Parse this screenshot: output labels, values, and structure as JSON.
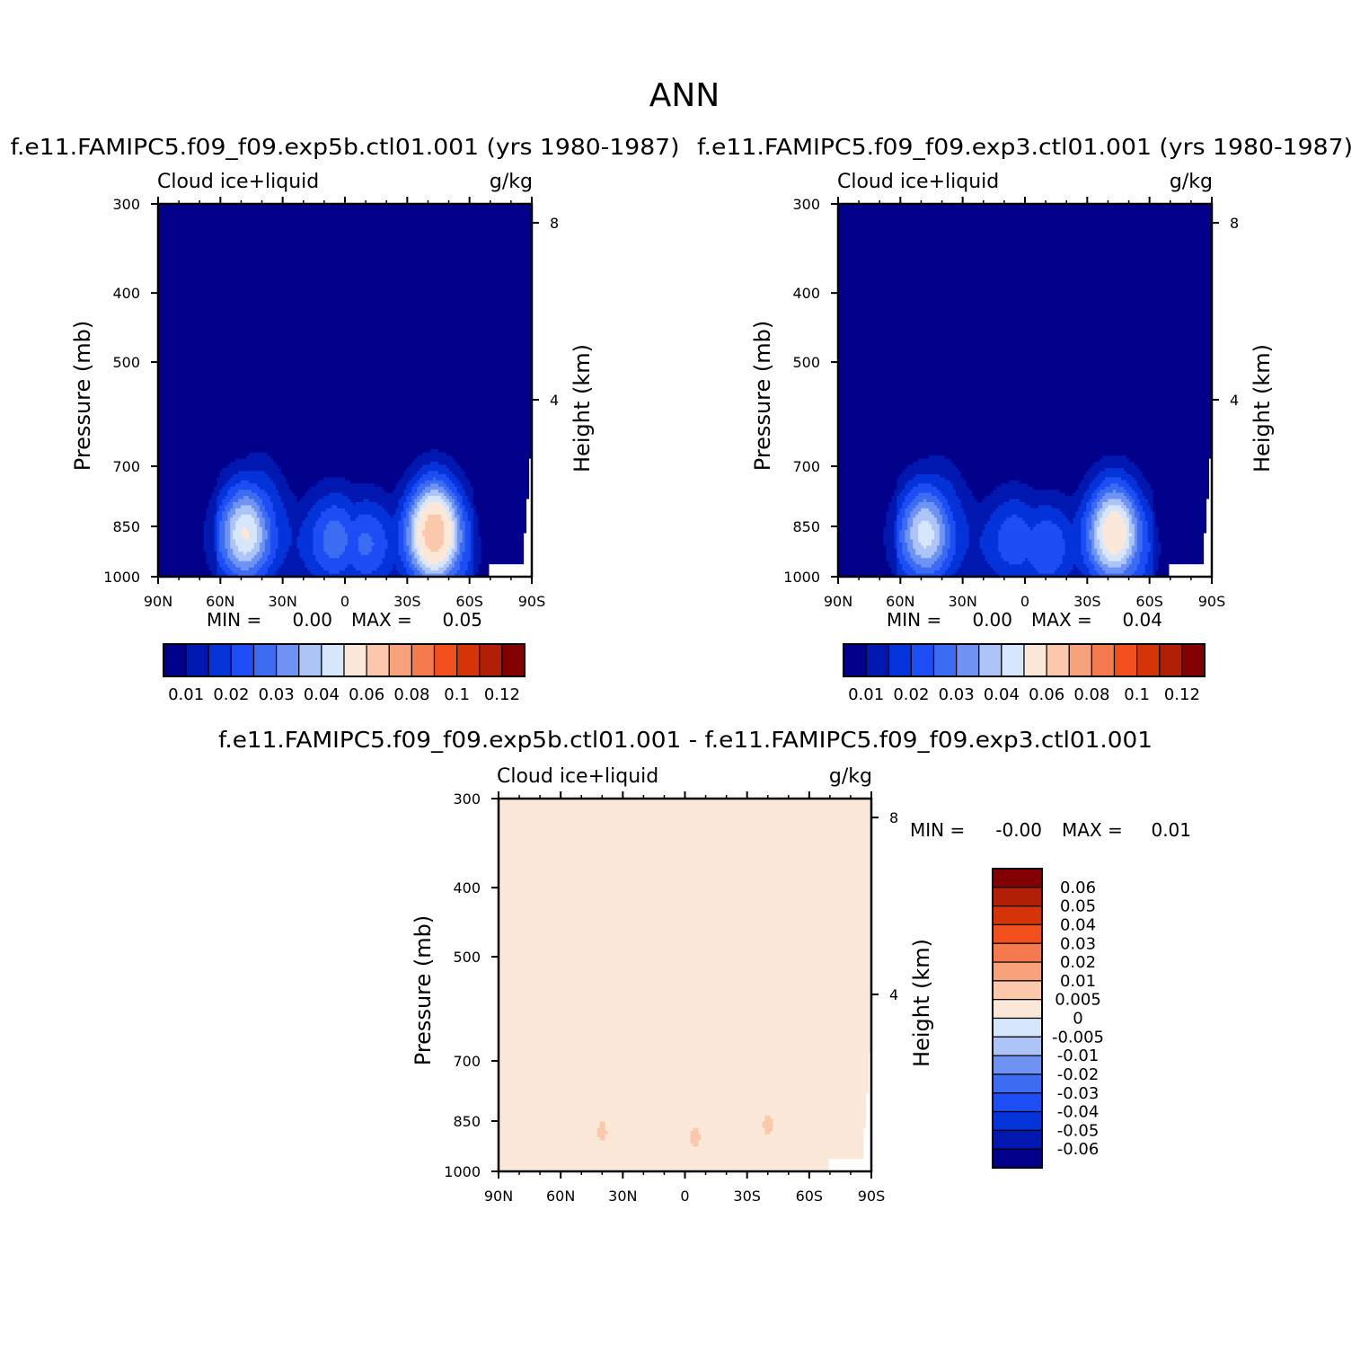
{
  "figure": {
    "title": "ANN"
  },
  "palette": {
    "seq": [
      "#00008b",
      "#0018b0",
      "#0433da",
      "#1d4df5",
      "#3c6cf2",
      "#6e93f2",
      "#adc4f7",
      "#d6e6fb",
      "#fce8d8",
      "#fbc8ac",
      "#f8a27c",
      "#f57a4d",
      "#f1501d",
      "#d53308",
      "#b01f06",
      "#820001"
    ],
    "diff": [
      "#00008b",
      "#0018b0",
      "#0433da",
      "#1d4df5",
      "#3c6cf2",
      "#6e93f2",
      "#adc4f7",
      "#d6e6fb",
      "#fce8d8",
      "#fbc8ac",
      "#f8a27c",
      "#f57a4d",
      "#f1501d",
      "#d53308",
      "#b01f06",
      "#820001"
    ],
    "missing": "#ffffff"
  },
  "panels": [
    {
      "case": "f.e11.FAMIPC5.f09_f09.exp5b.ctl01.001 (yrs 1980-1987)",
      "variable": "Cloud ice+liquid",
      "units": "g/kg",
      "min_label": "MIN =",
      "min_value": "0.00",
      "max_label": "MAX =",
      "max_value": "0.05"
    },
    {
      "case": "f.e11.FAMIPC5.f09_f09.exp3.ctl01.001 (yrs 1980-1987)",
      "variable": "Cloud ice+liquid",
      "units": "g/kg",
      "min_label": "MIN =",
      "min_value": "0.00",
      "max_label": "MAX =",
      "max_value": "0.04"
    },
    {
      "case": "f.e11.FAMIPC5.f09_f09.exp5b.ctl01.001 - f.e11.FAMIPC5.f09_f09.exp3.ctl01.001",
      "variable": "Cloud ice+liquid",
      "units": "g/kg",
      "min_label": "MIN =",
      "min_value": "-0.00",
      "max_label": "MAX =",
      "max_value": "0.01"
    }
  ],
  "axes": {
    "x_ticks": [
      "90N",
      "60N",
      "30N",
      "0",
      "30S",
      "60S",
      "90S"
    ],
    "y_label": "Pressure (mb)",
    "y_ticks": [
      "300",
      "400",
      "500",
      "700",
      "850",
      "1000"
    ],
    "y2_label": "Height (km)",
    "y2_ticks": [
      "8",
      "4"
    ]
  },
  "colorbars": {
    "seq_labels": [
      "0.01",
      "0.02",
      "0.03",
      "0.04",
      "0.06",
      "0.08",
      "0.1",
      "0.12"
    ],
    "diff_labels": [
      "0.06",
      "0.05",
      "0.04",
      "0.03",
      "0.02",
      "0.01",
      "0.005",
      "0",
      "-0.005",
      "-0.01",
      "-0.02",
      "-0.03",
      "-0.04",
      "-0.05",
      "-0.06"
    ]
  },
  "chart_data": [
    {
      "type": "heatmap",
      "title": "f.e11.FAMIPC5.f09_f09.exp5b.ctl01.001 (yrs 1980-1987)",
      "subtitle": "Cloud ice+liquid",
      "units": "g/kg",
      "xlabel": "",
      "ylabel": "Pressure (mb)",
      "y2label": "Height (km)",
      "xlim": [
        90,
        -90
      ],
      "ylim": [
        1000,
        300
      ],
      "yscale": "log",
      "levels": [
        0.005,
        0.01,
        0.015,
        0.02,
        0.025,
        0.03,
        0.035,
        0.04,
        0.05,
        0.06,
        0.07,
        0.08,
        0.09,
        0.1,
        0.12
      ],
      "min": 0.0,
      "max": 0.05,
      "features": [
        {
          "lat": 48,
          "p": 862,
          "peak": 0.033
        },
        {
          "lat": 42,
          "p": 800,
          "peak": 0.015
        },
        {
          "lat": 5,
          "p": 880,
          "peak": 0.015
        },
        {
          "lat": -10,
          "p": 900,
          "peak": 0.013
        },
        {
          "lat": -43,
          "p": 862,
          "peak": 0.05
        },
        {
          "lat": -47,
          "p": 930,
          "peak": 0.022
        }
      ]
    },
    {
      "type": "heatmap",
      "title": "f.e11.FAMIPC5.f09_f09.exp3.ctl01.001 (yrs 1980-1987)",
      "subtitle": "Cloud ice+liquid",
      "units": "g/kg",
      "xlabel": "",
      "ylabel": "Pressure (mb)",
      "y2label": "Height (km)",
      "xlim": [
        90,
        -90
      ],
      "ylim": [
        1000,
        300
      ],
      "yscale": "log",
      "levels": [
        0.005,
        0.01,
        0.015,
        0.02,
        0.025,
        0.03,
        0.035,
        0.04,
        0.05,
        0.06,
        0.07,
        0.08,
        0.09,
        0.1,
        0.12
      ],
      "min": 0.0,
      "max": 0.04,
      "features": [
        {
          "lat": 48,
          "p": 862,
          "peak": 0.03
        },
        {
          "lat": 42,
          "p": 800,
          "peak": 0.013
        },
        {
          "lat": 5,
          "p": 880,
          "peak": 0.011
        },
        {
          "lat": -10,
          "p": 920,
          "peak": 0.012
        },
        {
          "lat": -43,
          "p": 862,
          "peak": 0.04
        },
        {
          "lat": -47,
          "p": 930,
          "peak": 0.02
        }
      ]
    },
    {
      "type": "heatmap",
      "title": "f.e11.FAMIPC5.f09_f09.exp5b.ctl01.001 - f.e11.FAMIPC5.f09_f09.exp3.ctl01.001",
      "subtitle": "Cloud ice+liquid",
      "units": "g/kg",
      "xlabel": "",
      "ylabel": "Pressure (mb)",
      "y2label": "Height (km)",
      "xlim": [
        90,
        -90
      ],
      "ylim": [
        1000,
        300
      ],
      "yscale": "log",
      "levels": [
        -0.06,
        -0.05,
        -0.04,
        -0.03,
        -0.02,
        -0.01,
        -0.005,
        0,
        0.005,
        0.01,
        0.02,
        0.03,
        0.04,
        0.05,
        0.06
      ],
      "min": -0.0,
      "max": 0.01,
      "features": [
        {
          "lat": 40,
          "p": 880,
          "peak": 0.006
        },
        {
          "lat": -5,
          "p": 895,
          "peak": 0.006
        },
        {
          "lat": -40,
          "p": 860,
          "peak": 0.006
        }
      ]
    }
  ]
}
